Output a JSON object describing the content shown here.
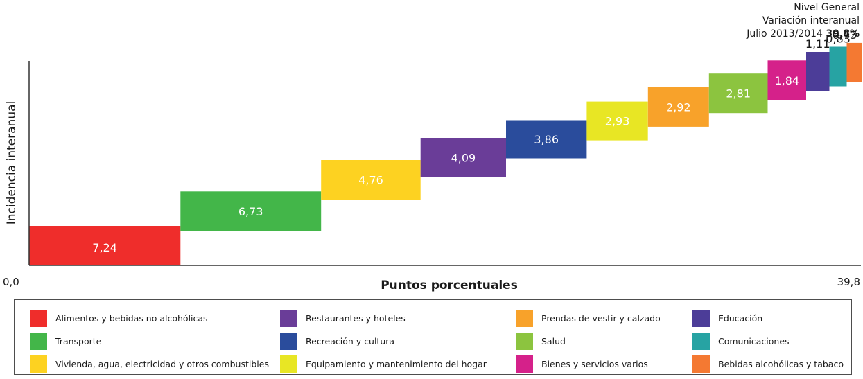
{
  "header": {
    "line1": "Nivel General",
    "line2": "Variación interanual",
    "line3_label": "Julio 2013/2014",
    "line3_value": "39,8%"
  },
  "chart_data": {
    "type": "bar",
    "subtype": "waterfall",
    "title": "",
    "xlabel": "Puntos porcentuales",
    "ylabel": "Incidencia interanual",
    "xlim": [
      0,
      39.8
    ],
    "x_start_label": "0,0",
    "x_end_label": "39,8",
    "grid": false,
    "legend_position": "bottom",
    "categories": [
      "Alimentos y bebidas no alcohólicas",
      "Transporte",
      "Vivienda, agua, electricidad y otros combustibles",
      "Restaurantes y hoteles",
      "Recreación y cultura",
      "Equipamiento y mantenimiento del hogar",
      "Prendas de vestir y calzado",
      "Salud",
      "Bienes y servicios varios",
      "Educación",
      "Comunicaciones",
      "Bebidas alcohólicas y tabaco"
    ],
    "values": [
      7.24,
      6.73,
      4.76,
      4.09,
      3.86,
      2.93,
      2.92,
      2.81,
      1.84,
      1.11,
      0.83,
      0.73
    ],
    "value_labels": [
      "7,24",
      "6,73",
      "4,76",
      "4,09",
      "3,86",
      "2,93",
      "2,92",
      "2,81",
      "1,84",
      "1,11",
      "0,83",
      "0,73"
    ],
    "colors": [
      "#ef2d2b",
      "#43b649",
      "#fdd221",
      "#6a3d98",
      "#2a4c9c",
      "#e8e624",
      "#f8a22a",
      "#8cc43f",
      "#d5218a",
      "#4c3d98",
      "#27a3a3",
      "#f47932"
    ]
  },
  "legend_order": [
    0,
    3,
    6,
    9,
    1,
    4,
    7,
    10,
    2,
    5,
    8,
    11
  ]
}
